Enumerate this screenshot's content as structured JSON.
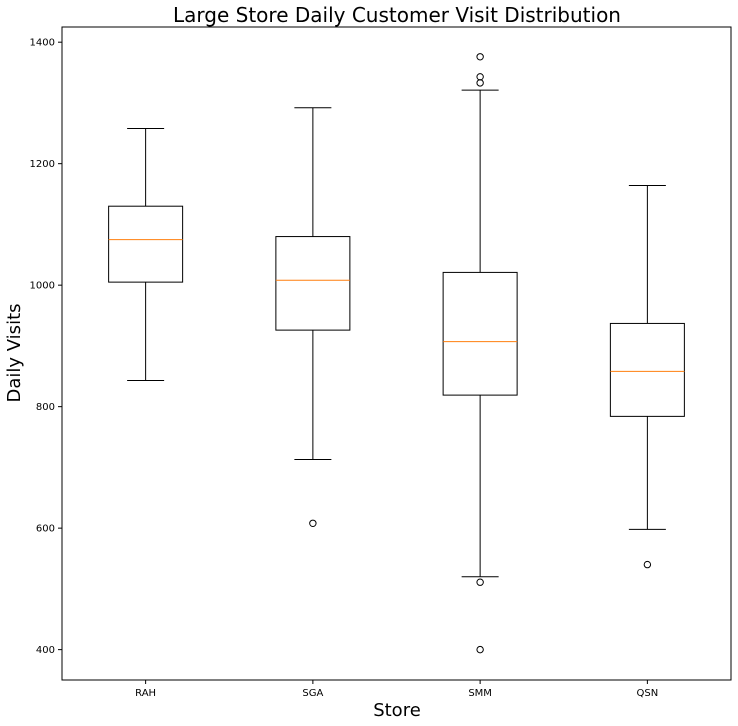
{
  "chart_data": {
    "type": "box",
    "title": "Large Store Daily Customer Visit Distribution",
    "xlabel": "Store",
    "ylabel": "Daily Visits",
    "ylim": [
      350,
      1425
    ],
    "yticks": [
      400,
      600,
      800,
      1000,
      1200,
      1400
    ],
    "grid": false,
    "colors": {
      "box": "#000000",
      "median": "#ff7f0e"
    },
    "categories": [
      "RAH",
      "SGA",
      "SMM",
      "QSN"
    ],
    "boxes": [
      {
        "category": "RAH",
        "whisker_low": 843,
        "q1": 1005,
        "median": 1075,
        "q3": 1130,
        "whisker_high": 1258,
        "outliers": []
      },
      {
        "category": "SGA",
        "whisker_low": 713,
        "q1": 926,
        "median": 1008,
        "q3": 1080,
        "whisker_high": 1292,
        "outliers": [
          608
        ]
      },
      {
        "category": "SMM",
        "whisker_low": 520,
        "q1": 819,
        "median": 907,
        "q3": 1021,
        "whisker_high": 1321,
        "outliers": [
          1376,
          1343,
          1333,
          511,
          400
        ]
      },
      {
        "category": "QSN",
        "whisker_low": 598,
        "q1": 784,
        "median": 858,
        "q3": 937,
        "whisker_high": 1164,
        "outliers": [
          540
        ]
      }
    ]
  }
}
